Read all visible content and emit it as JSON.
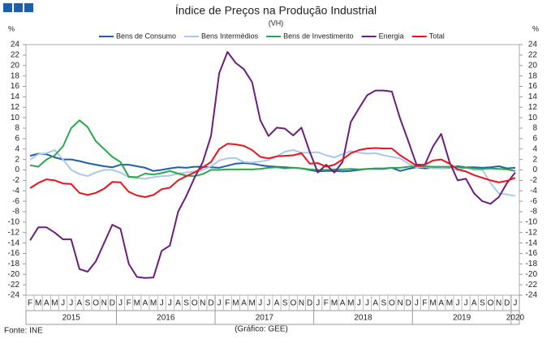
{
  "chart_data": {
    "type": "line",
    "title": "Índice de Preços na Produção Industrial",
    "subtitle": "(VH)",
    "y_label": "%",
    "y2_label": "%",
    "source": "Fonte: INE",
    "note": "(Gráfico: GEE)",
    "categories": [
      "F",
      "M",
      "A",
      "M",
      "J",
      "J",
      "A",
      "S",
      "O",
      "N",
      "D",
      "J",
      "F",
      "M",
      "A",
      "M",
      "J",
      "J",
      "A",
      "S",
      "O",
      "N",
      "D",
      "J",
      "F",
      "M",
      "A",
      "M",
      "J",
      "J",
      "A",
      "S",
      "O",
      "N",
      "D",
      "J",
      "F",
      "M",
      "A",
      "M",
      "J",
      "J",
      "A",
      "S",
      "O",
      "N",
      "D",
      "J",
      "F",
      "M",
      "A",
      "M",
      "J",
      "J",
      "A",
      "S",
      "O",
      "N",
      "D",
      "J"
    ],
    "year_labels": [
      "2015",
      "2016",
      "2017",
      "2018",
      "2019",
      "2020"
    ],
    "ylim": [
      -24,
      24
    ],
    "yticks": [
      -24,
      -22,
      -20,
      -18,
      -16,
      -14,
      -12,
      -10,
      -8,
      -6,
      -4,
      -2,
      0,
      2,
      4,
      6,
      8,
      10,
      12,
      14,
      16,
      18,
      20,
      22,
      24
    ],
    "y2lim": [
      -24,
      24
    ],
    "y2ticks": [
      -24,
      -22,
      -20,
      -18,
      -16,
      -14,
      -12,
      -10,
      -8,
      -6,
      -4,
      -2,
      0,
      2,
      4,
      6,
      8,
      10,
      12,
      14,
      16,
      18,
      20,
      22,
      24
    ],
    "grid": false,
    "legend": "top",
    "series": [
      {
        "name": "Bens de Consumo",
        "color": "#1f5fa8",
        "values": [
          2.7,
          3.1,
          3,
          2.4,
          2,
          2,
          1.7,
          1.3,
          1,
          0.7,
          0.5,
          1,
          1,
          0.7,
          0.4,
          -0.2,
          0,
          0.3,
          0.5,
          0.4,
          0.6,
          0.6,
          0.5,
          0.4,
          0.8,
          1.2,
          1.3,
          1.2,
          0.9,
          0.7,
          0.6,
          0.5,
          0.4,
          0.3,
          0,
          -0.3,
          -0.2,
          -0.2,
          -0.3,
          -0.2,
          0,
          0.2,
          0.2,
          0.2,
          0.4,
          -0.2,
          0.2,
          0.5,
          0.3,
          0.4,
          0.3,
          0.4,
          0.7,
          0.5,
          0.5,
          0.4,
          0.5,
          0.7,
          0.3,
          0.4
        ]
      },
      {
        "name": "Bens Intermédios",
        "color": "#a9c8ee",
        "values": [
          2,
          3,
          3.2,
          3.8,
          2,
          0,
          -0.8,
          -1.2,
          -0.5,
          0,
          0,
          -0.5,
          -1.4,
          -1.6,
          -1.7,
          -1.4,
          -1.2,
          -1.1,
          -0.7,
          -0.5,
          -0.3,
          0,
          0.7,
          1.8,
          2.2,
          2.3,
          1.5,
          1.4,
          1.6,
          1.9,
          2.6,
          3.5,
          3.8,
          3.3,
          3.3,
          3.4,
          2.8,
          2.4,
          3,
          3.6,
          3.3,
          3.1,
          3.2,
          2.8,
          2.5,
          2.2,
          1.2,
          0.5,
          0.6,
          0.3,
          0.3,
          0.5,
          -0.1,
          0.5,
          0,
          0,
          -2.5,
          -4.5,
          -4.7,
          -5
        ]
      },
      {
        "name": "Bens de Investimento",
        "color": "#2aa84a",
        "values": [
          0.9,
          0.6,
          2,
          2.8,
          4.5,
          8,
          9.5,
          8.2,
          5.5,
          4,
          2.5,
          1.5,
          -1.3,
          -1.4,
          -0.7,
          -0.9,
          -0.6,
          -0.2,
          -0.7,
          -1.1,
          -1.2,
          -0.8,
          0,
          0,
          0.1,
          0.1,
          0.1,
          0.1,
          0.2,
          0.4,
          0.5,
          0.3,
          0.4,
          0.3,
          0.1,
          0,
          0,
          0.1,
          0.1,
          0.2,
          0.1,
          0.2,
          0.3,
          0.3,
          0.4,
          0.4,
          0.6,
          0.7,
          0.7,
          0.6,
          0.6,
          0.6,
          0.5,
          0.4,
          0.3,
          0.2,
          0.3,
          0.2,
          0.1,
          -0.2
        ]
      },
      {
        "name": "Energia",
        "color": "#6a1e7e",
        "values": [
          -13.5,
          -11,
          -11,
          -12,
          -13.3,
          -13.3,
          -19,
          -19.5,
          -17.5,
          -14,
          -10.5,
          -11.3,
          -18,
          -20.5,
          -20.7,
          -20.6,
          -15.5,
          -14.5,
          -8,
          -5,
          -1.5,
          1.5,
          6.5,
          18.5,
          22.6,
          20.5,
          19.3,
          16.8,
          9.5,
          6.5,
          8.1,
          7.9,
          6.6,
          8.1,
          3.5,
          -0.5,
          1,
          -0.5,
          1.5,
          9.2,
          11.8,
          14.3,
          15.2,
          15.2,
          15,
          9.8,
          5.5,
          1,
          1,
          4.5,
          6.9,
          1.5,
          -2,
          -1.7,
          -4.5,
          -6,
          -6.5,
          -5.2,
          -2.5,
          -0.5
        ]
      },
      {
        "name": "Total",
        "color": "#e8141b",
        "values": [
          -3.5,
          -2.5,
          -1.8,
          -2,
          -2.6,
          -2.7,
          -4.4,
          -4.8,
          -4.4,
          -3.6,
          -2.3,
          -2.4,
          -4.2,
          -4.9,
          -5.2,
          -4.8,
          -3.7,
          -3.4,
          -2,
          -1.2,
          -0.5,
          0.5,
          1.5,
          4,
          5,
          4.9,
          4.6,
          3.8,
          2.5,
          2.2,
          2.6,
          2.7,
          2.8,
          3.2,
          1.2,
          1.3,
          0.6,
          1,
          2,
          3.2,
          3.8,
          4.1,
          4.2,
          4.1,
          4.1,
          2.8,
          1.8,
          0.8,
          1,
          1.8,
          2,
          1.2,
          0.1,
          -0.3,
          -1,
          -1.5,
          -2,
          -2.4,
          -2.1,
          -1.5
        ]
      }
    ]
  }
}
